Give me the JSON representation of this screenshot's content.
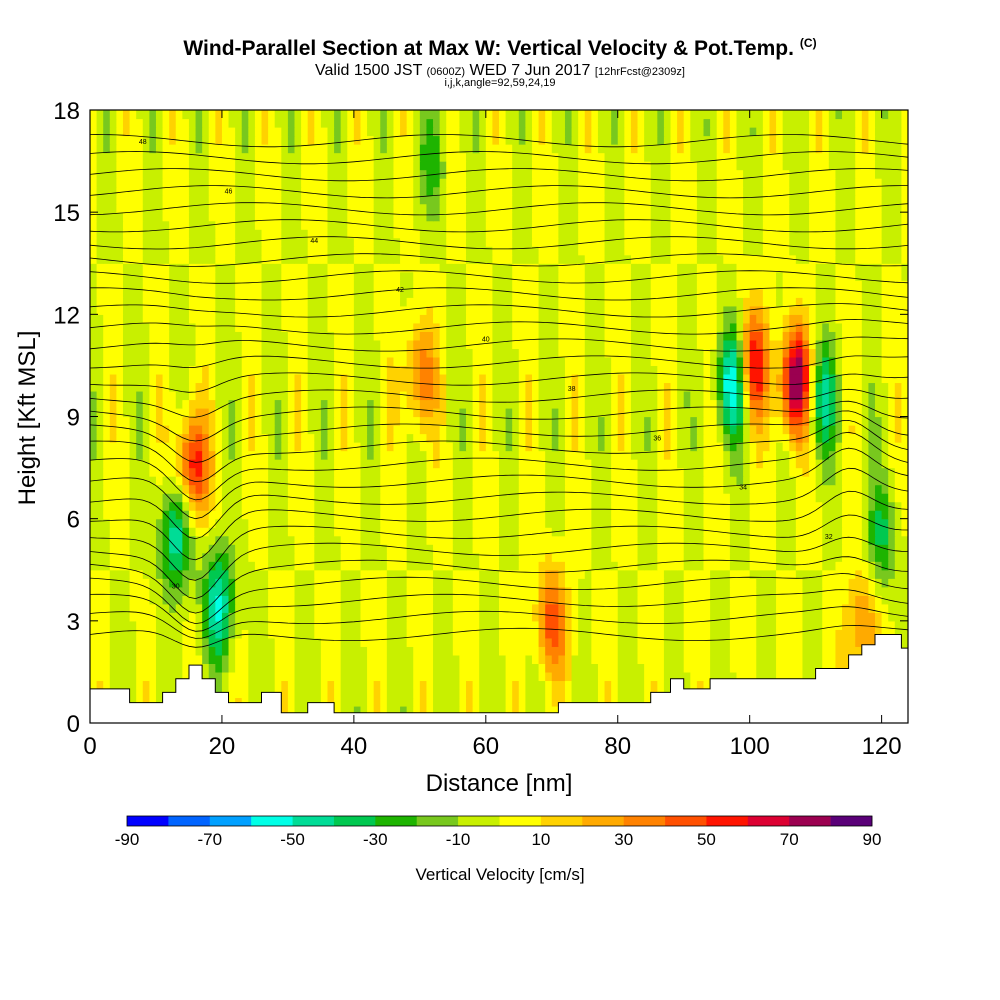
{
  "title": {
    "main": "Wind-Parallel Section at Max W: Vertical Velocity & Pot.Temp.",
    "copyright": "(C)",
    "valid_prefix": "Valid 1500 JST",
    "valid_utc": "(0600Z)",
    "valid_date": "WED 7 Jun 2017",
    "forecast": "[12hrFcst@2309z]",
    "indices": "i,j,k,angle=92,59,24,19"
  },
  "chart_data": {
    "type": "heatmap",
    "xlabel": "Distance [nm]",
    "ylabel": "Height [Kft MSL]",
    "xlim": [
      0,
      124
    ],
    "ylim": [
      0,
      18
    ],
    "x_ticks": [
      "0",
      "20",
      "40",
      "60",
      "80",
      "100",
      "120"
    ],
    "y_ticks": [
      "0",
      "3",
      "6",
      "9",
      "12",
      "15",
      "18"
    ],
    "colorbar": {
      "label": "Vertical Velocity [cm/s]",
      "tick_labels": [
        "-90",
        "-70",
        "-50",
        "-30",
        "-10",
        "10",
        "30",
        "50",
        "70",
        "90"
      ],
      "bounds": [
        -90,
        -80,
        -70,
        -60,
        -50,
        -40,
        -30,
        -20,
        -10,
        0,
        10,
        20,
        30,
        40,
        50,
        60,
        70,
        80,
        90
      ],
      "colors": [
        "#0000ff",
        "#0064ff",
        "#00a0ff",
        "#00ffe6",
        "#00dc96",
        "#00c850",
        "#1eb400",
        "#78c81e",
        "#c8f000",
        "#ffff00",
        "#ffd200",
        "#ffaa00",
        "#ff8200",
        "#ff5000",
        "#ff1400",
        "#dc0032",
        "#9b0050",
        "#5a0078"
      ]
    },
    "theta_contour_labels": [
      "48",
      "46",
      "44",
      "42",
      "40",
      "38",
      "36",
      "34",
      "32",
      "30"
    ],
    "terrain": [
      [
        0,
        1.0
      ],
      [
        2,
        1.0
      ],
      [
        6,
        1.0
      ],
      [
        6,
        0.6
      ],
      [
        11,
        0.6
      ],
      [
        11,
        0.9
      ],
      [
        13,
        0.9
      ],
      [
        13,
        1.3
      ],
      [
        15,
        1.3
      ],
      [
        15,
        1.7
      ],
      [
        17,
        1.7
      ],
      [
        17,
        1.3
      ],
      [
        19,
        1.3
      ],
      [
        19,
        0.9
      ],
      [
        21,
        0.9
      ],
      [
        21,
        0.6
      ],
      [
        26,
        0.6
      ],
      [
        26,
        0.9
      ],
      [
        29,
        0.9
      ],
      [
        29,
        0.3
      ],
      [
        33,
        0.3
      ],
      [
        33,
        0.6
      ],
      [
        37,
        0.6
      ],
      [
        37,
        0.3
      ],
      [
        71,
        0.3
      ],
      [
        71,
        0.6
      ],
      [
        81,
        0.6
      ],
      [
        85,
        0.6
      ],
      [
        85,
        0.9
      ],
      [
        88,
        0.9
      ],
      [
        88,
        1.3
      ],
      [
        90,
        1.3
      ],
      [
        90,
        1.0
      ],
      [
        94,
        1.0
      ],
      [
        94,
        1.3
      ],
      [
        110,
        1.3
      ],
      [
        110,
        1.6
      ],
      [
        115,
        1.6
      ],
      [
        115,
        2.0
      ],
      [
        117,
        2.0
      ],
      [
        117,
        2.3
      ],
      [
        119,
        2.3
      ],
      [
        119,
        2.6
      ],
      [
        123,
        2.6
      ],
      [
        123,
        2.2
      ],
      [
        124,
        2.2
      ]
    ],
    "updraft_cores_cm_s": [
      {
        "x": 15.5,
        "y": 7.5,
        "w": 60
      },
      {
        "x": 50,
        "y": 10.2,
        "w": 40
      },
      {
        "x": 70,
        "y": 3.0,
        "w": 45
      },
      {
        "x": 100.5,
        "y": 10.5,
        "w": 60
      },
      {
        "x": 107,
        "y": 10.0,
        "w": 80
      },
      {
        "x": 117,
        "y": 2.8,
        "w": 35
      }
    ],
    "downdraft_cores_cm_s": [
      {
        "x": 13,
        "y": 5.5,
        "w": -50
      },
      {
        "x": 19.5,
        "y": 3.5,
        "w": -50
      },
      {
        "x": 97.5,
        "y": 10.0,
        "w": -60
      },
      {
        "x": 111,
        "y": 9.5,
        "w": -40
      },
      {
        "x": 120,
        "y": 5.5,
        "w": -30
      },
      {
        "x": 52,
        "y": 16.5,
        "w": -20
      }
    ]
  }
}
